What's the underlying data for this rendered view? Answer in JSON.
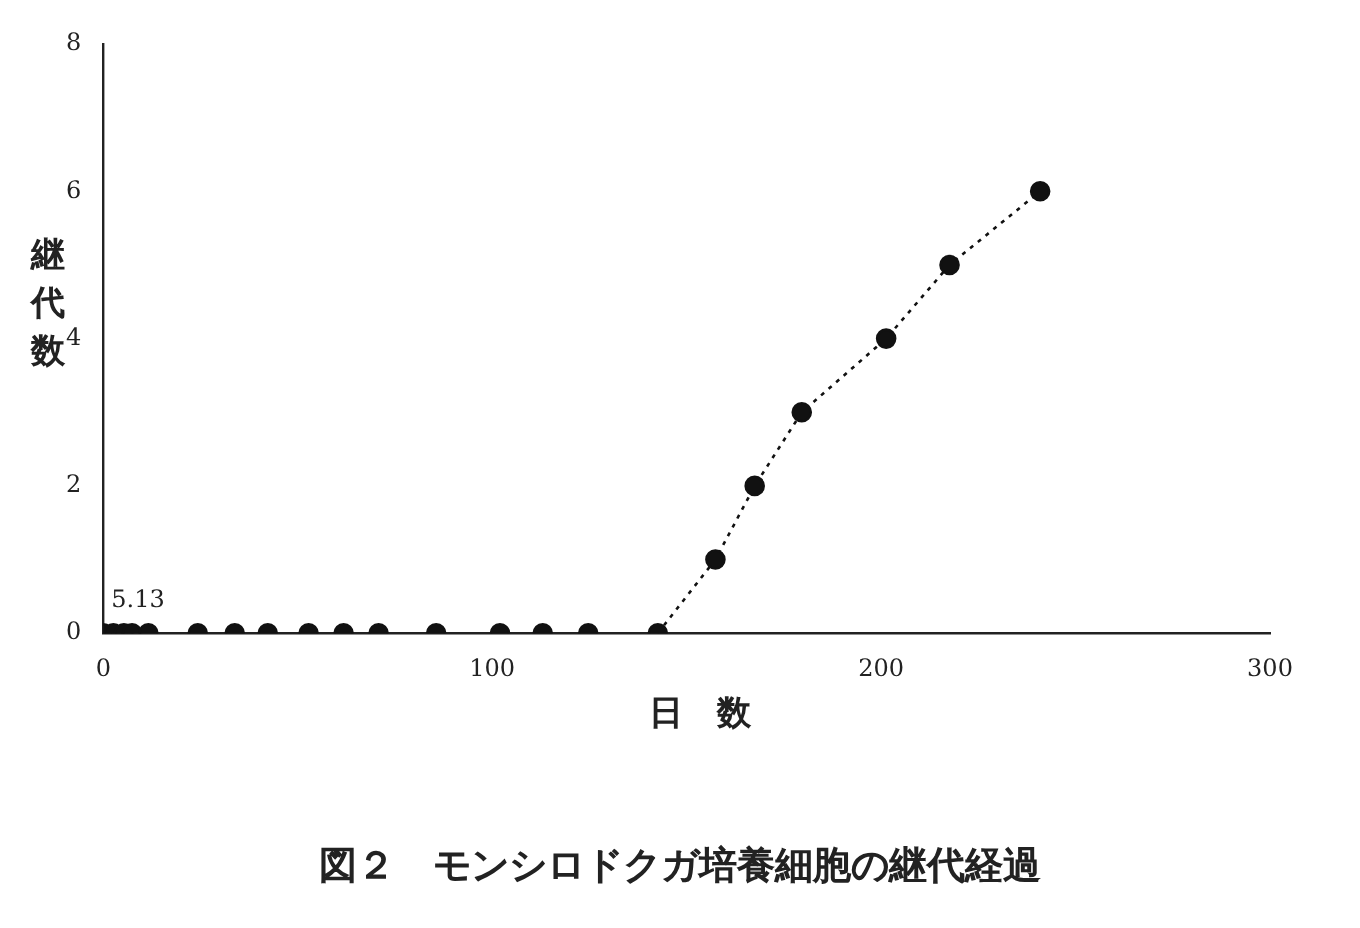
{
  "chart_data": {
    "type": "scatter",
    "title": "図２　モンシロドクガ培養細胞の継代経過",
    "xlabel": "日　数",
    "ylabel": "継代数",
    "series": [
      {
        "color": "#111111",
        "x": [
          0,
          2.6,
          5.3,
          7.4,
          11.6,
          24.3,
          33.8,
          42.3,
          52.8,
          61.8,
          70.8,
          85.6,
          102,
          113,
          124.7
        ],
        "values": [
          0,
          0,
          0,
          0,
          0,
          0,
          0,
          0,
          0,
          0,
          0,
          0,
          0,
          0,
          0
        ]
      },
      {
        "type": "line",
        "color": "#111111",
        "line_style": "dotted",
        "x": [
          142.6,
          157.4,
          167.5,
          179.6,
          201.3,
          217.6,
          240.9
        ],
        "values": [
          0,
          1,
          2,
          3,
          4,
          5,
          6
        ]
      }
    ],
    "marker": "circle",
    "xlim": [
      0,
      300
    ],
    "xticks": [
      0,
      100,
      200,
      300
    ],
    "ylim": [
      0,
      8
    ],
    "yticks": [
      0,
      2,
      4,
      6,
      8
    ],
    "grid": false,
    "legend": false,
    "annotations": [
      {
        "text": "5.13",
        "x": 0,
        "y": 0
      }
    ]
  }
}
